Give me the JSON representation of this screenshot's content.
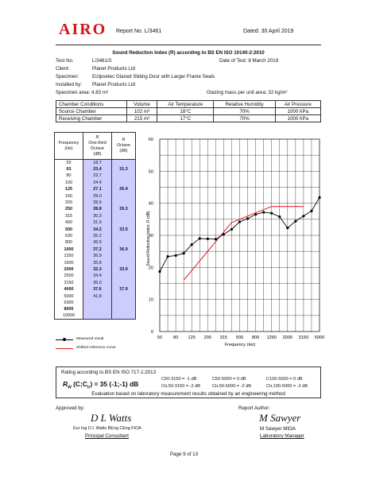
{
  "header": {
    "logo": "AIRO",
    "report_no": "Report No. L/3461",
    "dated": "Dated: 30 April 2019"
  },
  "title": "Sound Reduction Index (R) according to BS EN ISO 10140-2:2010",
  "meta": {
    "test_no_label": "Test No.",
    "test_no": "L/3461/3",
    "date_of_test": "Date of Test: 8 March 2019",
    "client_label": "Client:",
    "client": "Planet Products Ltd",
    "specimen_label": "Specimen:",
    "specimen": "Eclipsetec Glazed Sliding Door with Larger Frame Seals",
    "installed_label": "Installed by:",
    "installed": "Planet Products Ltd",
    "area_label": "Specimen area: 4.83 m²",
    "glazing_mass": "Glazing mass per unit area: 32 kg/m²"
  },
  "conditions": {
    "headers": [
      "Chamber Conditions",
      "Volume",
      "Air Temperature",
      "Relative Humidity",
      "Air Pressure"
    ],
    "rows": [
      [
        "Source Chamber",
        "102 m³",
        "18°C",
        "70%",
        "1000 hPa"
      ],
      [
        "Receiving Chamber",
        "215 m³",
        "17°C",
        "70%",
        "1000 hPa"
      ]
    ]
  },
  "freq_table": {
    "h1": "Frequency",
    "h1b": "(Hz)",
    "h2a": "R",
    "h2b": "One-third",
    "h2c": "Octave",
    "h2d": "(dB)",
    "h3a": "R",
    "h3b": "Octave",
    "h3c": "(dB)",
    "rows": [
      {
        "f": "50",
        "t": "18.7",
        "o": "",
        "b": false
      },
      {
        "f": "63",
        "t": "23.4",
        "o": "21.3",
        "b": true
      },
      {
        "f": "80",
        "t": "23.7",
        "o": "",
        "b": false
      },
      {
        "f": "100",
        "t": "24.4",
        "o": "",
        "b": false
      },
      {
        "f": "125",
        "t": "27.1",
        "o": "26.4",
        "b": true
      },
      {
        "f": "160",
        "t": "29.0",
        "o": "",
        "b": false
      },
      {
        "f": "200",
        "t": "28.9",
        "o": "",
        "b": false
      },
      {
        "f": "250",
        "t": "28.8",
        "o": "29.3",
        "b": true
      },
      {
        "f": "315",
        "t": "30.3",
        "o": "",
        "b": false
      },
      {
        "f": "400",
        "t": "31.9",
        "o": "",
        "b": false
      },
      {
        "f": "500",
        "t": "34.2",
        "o": "33.5",
        "b": true
      },
      {
        "f": "630",
        "t": "35.2",
        "o": "",
        "b": false
      },
      {
        "f": "800",
        "t": "36.5",
        "o": "",
        "b": false
      },
      {
        "f": "1000",
        "t": "37.2",
        "o": "36.9",
        "b": true
      },
      {
        "f": "1250",
        "t": "36.9",
        "o": "",
        "b": false
      },
      {
        "f": "1600",
        "t": "35.8",
        "o": "",
        "b": false
      },
      {
        "f": "2000",
        "t": "32.3",
        "o": "33.9",
        "b": true
      },
      {
        "f": "2500",
        "t": "34.4",
        "o": "",
        "b": false
      },
      {
        "f": "3150",
        "t": "36.0",
        "o": "",
        "b": false
      },
      {
        "f": "4000",
        "t": "37.6",
        "o": "37.9",
        "b": true
      },
      {
        "f": "5000",
        "t": "41.8",
        "o": "",
        "b": false
      },
      {
        "f": "6300",
        "t": "",
        "o": "",
        "b": false
      },
      {
        "f": "8000",
        "t": "",
        "o": "",
        "b": true
      },
      {
        "f": "10000",
        "t": "",
        "o": "",
        "b": false
      }
    ]
  },
  "chart_data": {
    "type": "line",
    "x": [
      "50",
      "63",
      "80",
      "100",
      "125",
      "160",
      "200",
      "250",
      "315",
      "400",
      "500",
      "630",
      "800",
      "1000",
      "1250",
      "1600",
      "2000",
      "2500",
      "3150",
      "4000",
      "5000"
    ],
    "x_tick_labels": [
      "50",
      "80",
      "125",
      "200",
      "315",
      "500",
      "800",
      "1250",
      "2000",
      "3150",
      "5000"
    ],
    "xlabel": "Frequency (Hz)",
    "ylabel": "Sound Reduction Index, R (dB)",
    "ylim": [
      0,
      60
    ],
    "y_ticks": [
      "0",
      "10",
      "20",
      "30",
      "40",
      "50",
      "60"
    ],
    "grid": true,
    "series": [
      {
        "name": "Measured result",
        "color": "#000000",
        "values": [
          18.7,
          23.4,
          23.7,
          24.4,
          27.1,
          29.0,
          28.9,
          28.8,
          30.3,
          31.9,
          34.2,
          35.2,
          36.5,
          37.2,
          36.9,
          35.8,
          32.3,
          34.4,
          36.0,
          37.6,
          41.8
        ]
      },
      {
        "name": "Shifted reference curve",
        "color": "#e0141e",
        "x": [
          "100",
          "400",
          "1250",
          "3150"
        ],
        "values": [
          16,
          34,
          39,
          39
        ]
      }
    ],
    "legend": [
      "Measured result",
      "Shifted reference curve"
    ]
  },
  "rating": {
    "title": "Rating according to BS EN ISO 717-1:2013",
    "rw": "R",
    "rw_sub": "W",
    "rw_rest": " (C;C",
    "rw_sub2": "tr",
    "rw_value": ") = 35 (-1;-1) dB",
    "c1": "C50-3150 =  -1 dB",
    "c2": "C50-5000 =   0 dB",
    "c3": "C100-5000 =   0 dB",
    "c4": "Ctr,50-3150 =  -2 dB",
    "c5": "Ctr,50-5000 =  -2 dB",
    "c6": "Ctr,100-5000 =  -2 dB",
    "basis": "Evaluation based on laboratory measurement results obtained by an engineering method"
  },
  "signatures": {
    "approved_label": "Approved by:",
    "approved_sig": "D L Watts",
    "approved_name": "Eur Ing D L Watts BEng CEng FIOA",
    "approved_role": "Principal Consultant",
    "author_label": "Report Author:",
    "author_sig": "M Sawyer",
    "author_name": "M Sawyer MIOA",
    "author_role": "Laboratory Manager"
  },
  "footer": "Page 9 of 13"
}
